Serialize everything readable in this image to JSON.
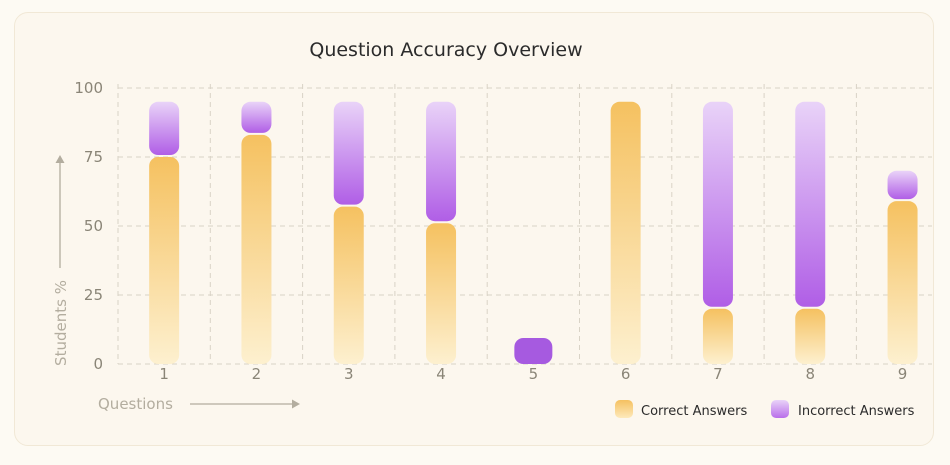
{
  "chart_data": {
    "type": "bar",
    "title": "Question Accuracy Overview",
    "xlabel": "Questions",
    "ylabel": "Students %",
    "categories": [
      "1",
      "2",
      "3",
      "4",
      "5",
      "6",
      "7",
      "8",
      "9"
    ],
    "series": [
      {
        "name": "Correct Answers",
        "color": "#f6c56a",
        "values": [
          75,
          83,
          57,
          51,
          0,
          95,
          20,
          20,
          59
        ]
      },
      {
        "name": "Incorrect Answers",
        "color": "#b46ae6",
        "values": [
          20,
          12,
          38,
          44,
          10,
          0,
          75,
          75,
          11
        ]
      }
    ],
    "ylim": [
      0,
      100
    ],
    "yticks": [
      0,
      25,
      50,
      75,
      100
    ],
    "grid": true,
    "legend": "bottom-right"
  }
}
